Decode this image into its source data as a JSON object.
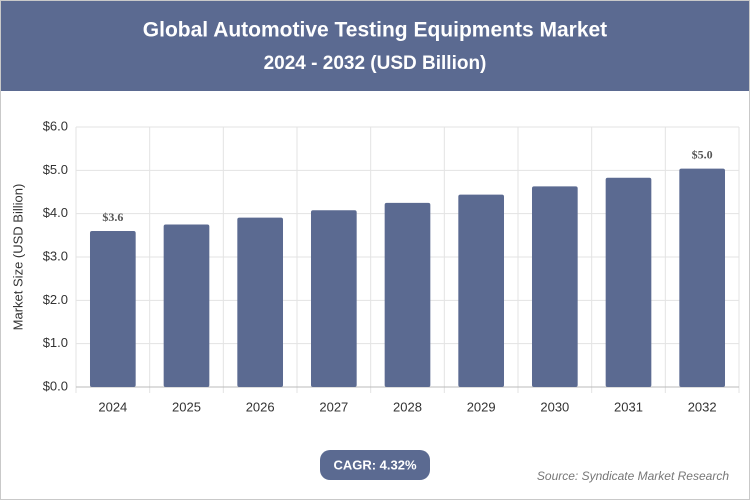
{
  "chart_data": {
    "type": "bar",
    "title": "Global Automotive Testing Equipments Market",
    "subtitle": "2024 - 2032 (USD Billion)",
    "y_label": "Market Size (USD Billion)",
    "categories": [
      "2024",
      "2025",
      "2026",
      "2027",
      "2028",
      "2029",
      "2030",
      "2031",
      "2032"
    ],
    "values": [
      3.6,
      3.75,
      3.91,
      4.08,
      4.25,
      4.44,
      4.63,
      4.83,
      5.04
    ],
    "value_labels": [
      "$3.6",
      null,
      null,
      null,
      null,
      null,
      null,
      null,
      "$5.0"
    ],
    "color": "#5b6a91",
    "ylim": [
      0,
      6
    ],
    "yticks": [
      {
        "value": 0,
        "label": "$0.0"
      },
      {
        "value": 1,
        "label": "$1.0"
      },
      {
        "value": 2,
        "label": "$2.0"
      },
      {
        "value": 3,
        "label": "$3.0"
      },
      {
        "value": 4,
        "label": "$4.0"
      },
      {
        "value": 5,
        "label": "$5.0"
      },
      {
        "value": 6,
        "label": "$6.0"
      }
    ],
    "grid": true,
    "cagr": "CAGR: 4.32%",
    "source": "Source: Syndicate Market Research"
  }
}
